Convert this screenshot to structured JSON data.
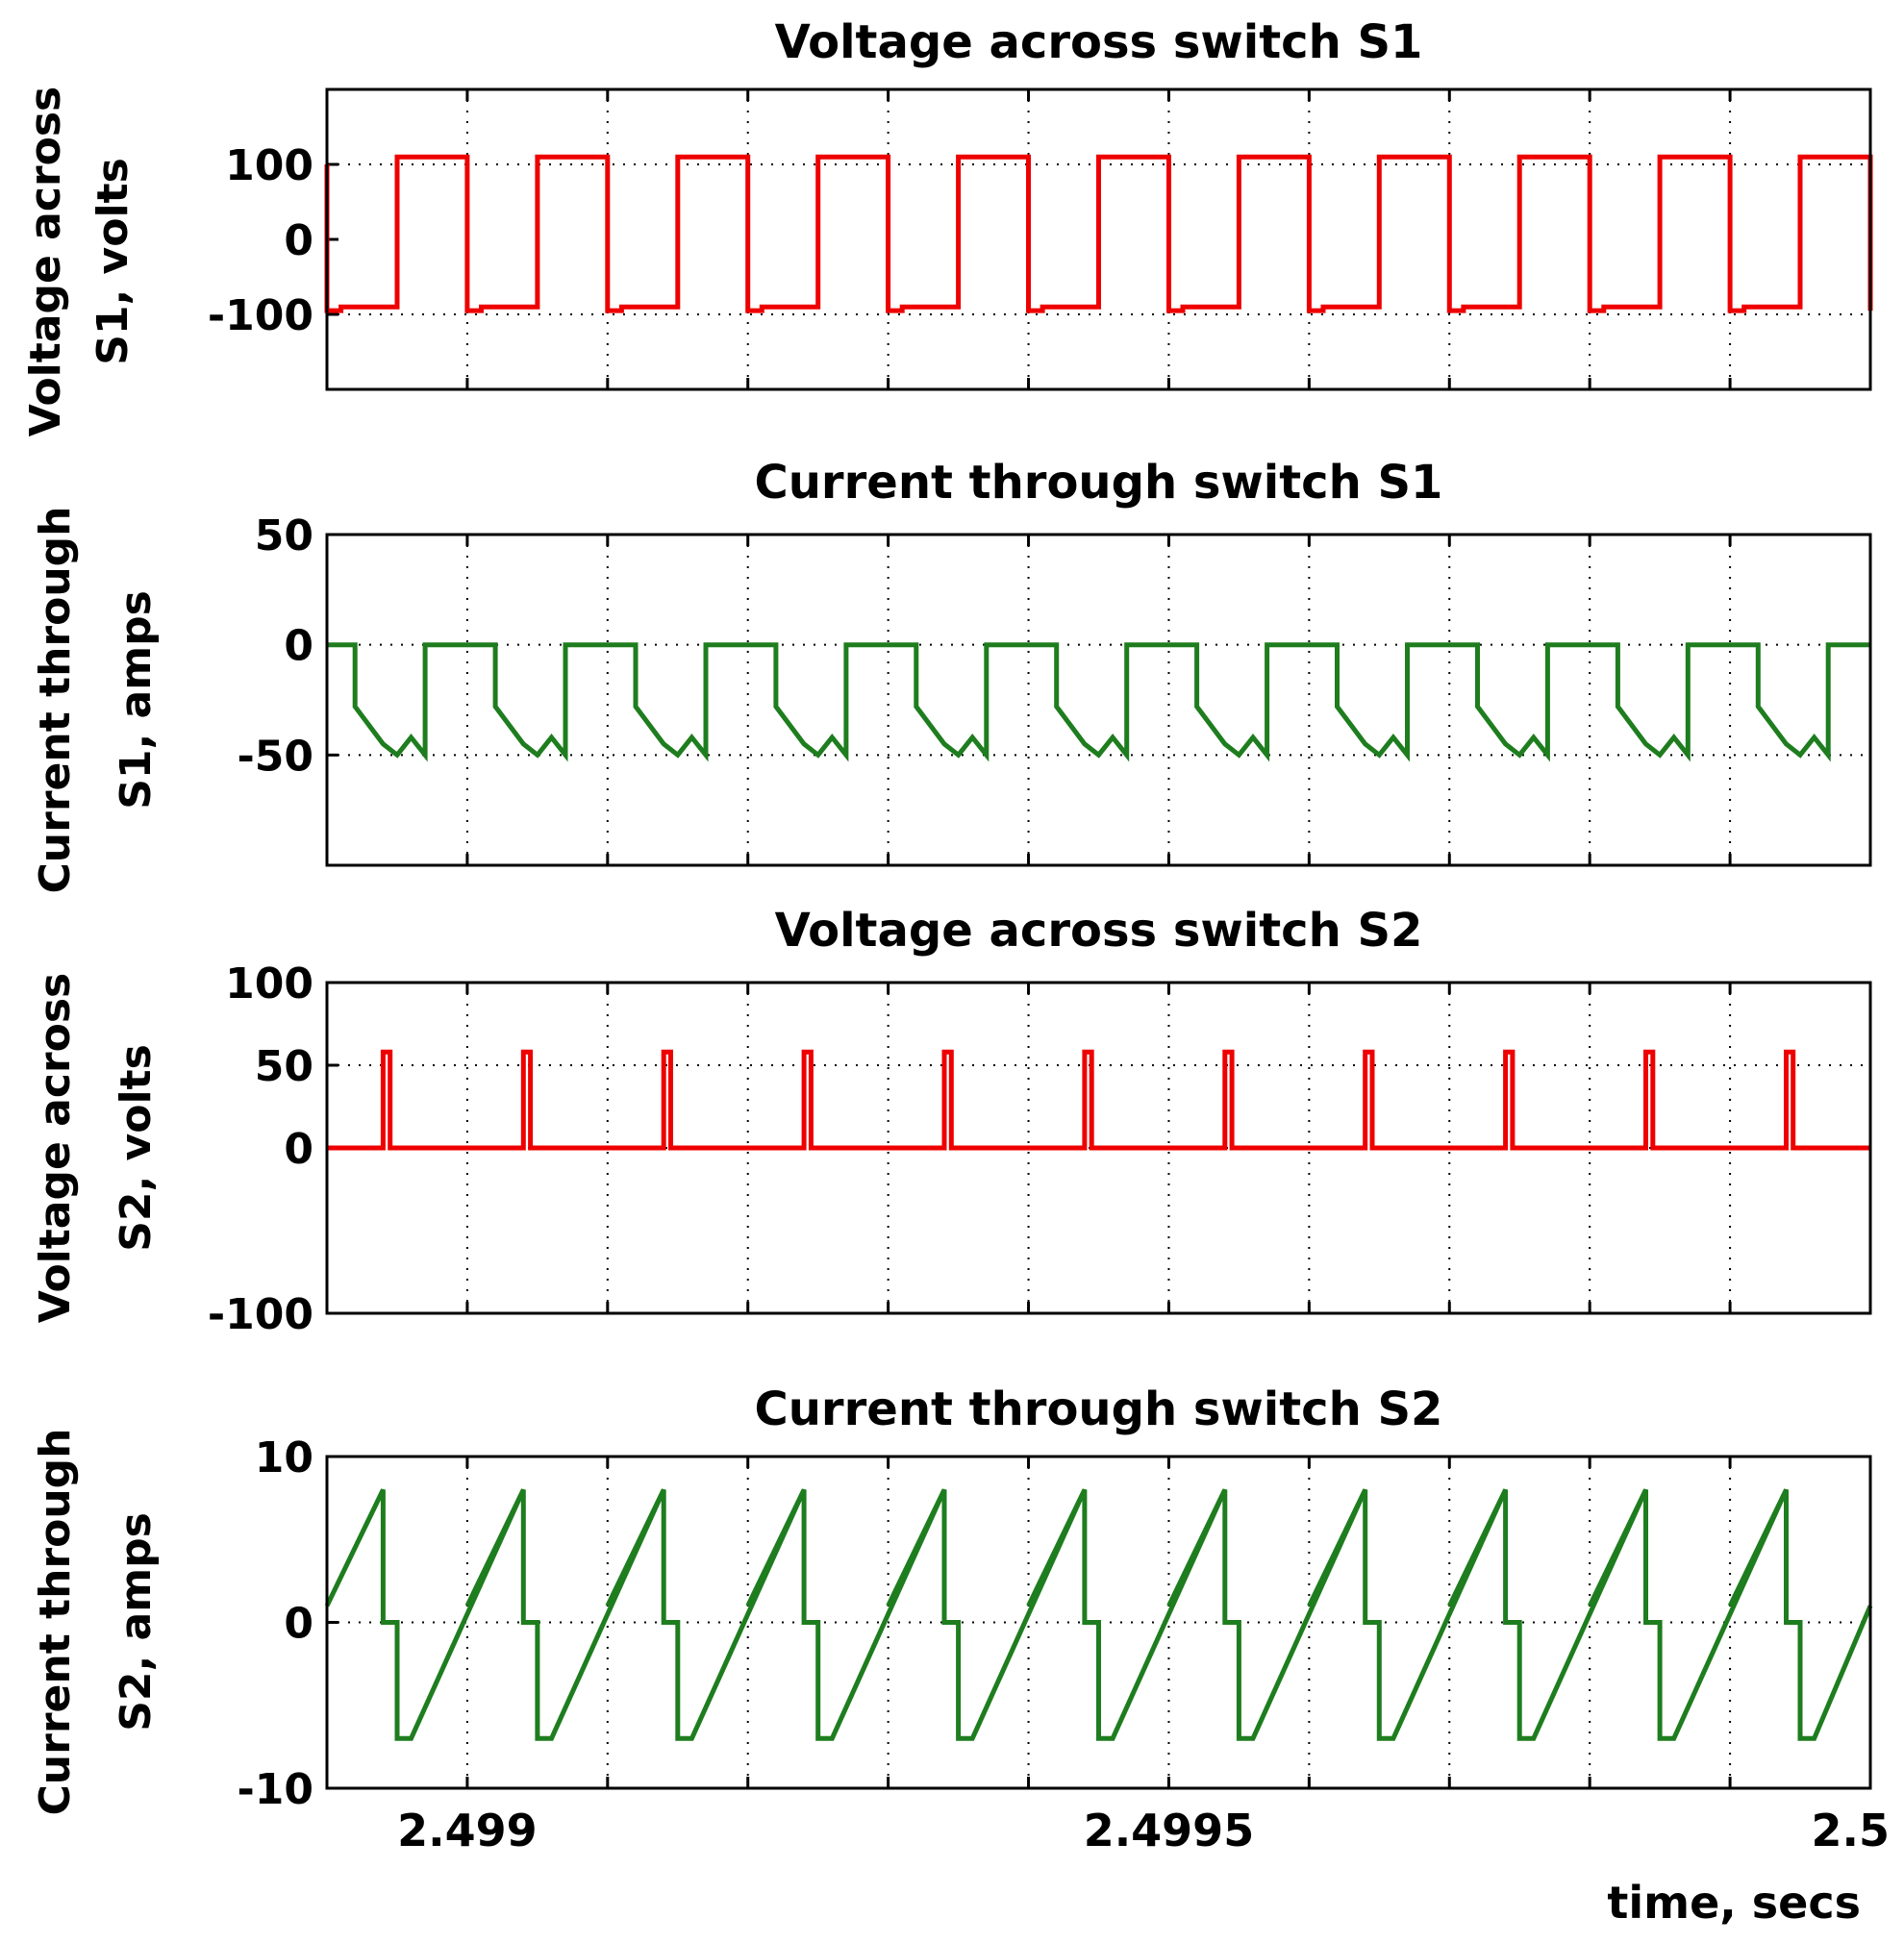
{
  "x_axis": {
    "label": "time, secs",
    "ticks": [
      "2.499",
      "2.4995",
      "2.5"
    ]
  },
  "colors": {
    "voltage": "#ee0000",
    "current": "#1e7d1e"
  },
  "chart_data": [
    {
      "type": "line",
      "title": "Voltage across switch S1",
      "ylabel": "Voltage across S1, volts",
      "xlim": [
        2.4989,
        2.5
      ],
      "ylim": [
        -200,
        200
      ],
      "yticks": [
        100,
        0,
        -100
      ],
      "ygrid": [
        100,
        -100
      ],
      "grid": true,
      "period_s": 0.0001,
      "color": "voltage",
      "series": [
        {
          "x": [
            2.4989,
            2.4989,
            2.4989,
            2.49891,
            2.49891,
            2.49895,
            2.49895,
            2.499,
            2.499
          ],
          "y": [
            100,
            100,
            -95,
            -95,
            -90,
            -90,
            110,
            110,
            -90
          ],
          "repeat": "every 0.0001 s through 2.5"
        }
      ]
    },
    {
      "type": "line",
      "title": "Current through switch S1",
      "ylabel": "Current through S1, amps",
      "xlim": [
        2.4989,
        2.5
      ],
      "ylim": [
        -100,
        50
      ],
      "yticks": [
        50,
        0,
        -50
      ],
      "ygrid": [
        0,
        -50
      ],
      "grid": true,
      "period_s": 0.0001,
      "color": "current",
      "series": [
        {
          "x": [
            2.4989,
            2.49892,
            2.49892,
            2.49894,
            2.49895,
            2.49896,
            2.49897,
            2.49897,
            2.49902
          ],
          "y": [
            0,
            0,
            -28,
            -45,
            -50,
            -42,
            -50,
            0,
            0
          ],
          "repeat": "every 0.0001 s through 2.5"
        }
      ]
    },
    {
      "type": "line",
      "title": "Voltage across switch S2",
      "ylabel": "Voltage across S2, volts",
      "xlim": [
        2.4989,
        2.5
      ],
      "ylim": [
        -100,
        100
      ],
      "yticks": [
        100,
        50,
        0,
        -100
      ],
      "ygrid": [
        50,
        0
      ],
      "grid": true,
      "period_s": 0.0001,
      "color": "voltage",
      "series": [
        {
          "x": [
            2.4989,
            2.49894,
            2.49894,
            2.498945,
            2.498945,
            2.49895,
            2.49895,
            2.49904
          ],
          "y": [
            0,
            0,
            58,
            58,
            0,
            0,
            0,
            0
          ],
          "repeat": "every 0.0001 s through 2.5"
        }
      ]
    },
    {
      "type": "line",
      "title": "Current through switch S2",
      "ylabel": "Current through S2, amps",
      "xlim": [
        2.4989,
        2.5
      ],
      "ylim": [
        -10,
        10
      ],
      "yticks": [
        10,
        0,
        -10
      ],
      "ygrid": [
        0
      ],
      "grid": true,
      "period_s": 0.0001,
      "color": "current",
      "series": [
        {
          "x": [
            2.4989,
            2.49894,
            2.49894,
            2.49895,
            2.49895,
            2.49896,
            2.49904
          ],
          "y": [
            1,
            8,
            0,
            0,
            -7,
            -7,
            8
          ],
          "repeat": "every 0.0001 s through 2.5"
        }
      ]
    }
  ]
}
